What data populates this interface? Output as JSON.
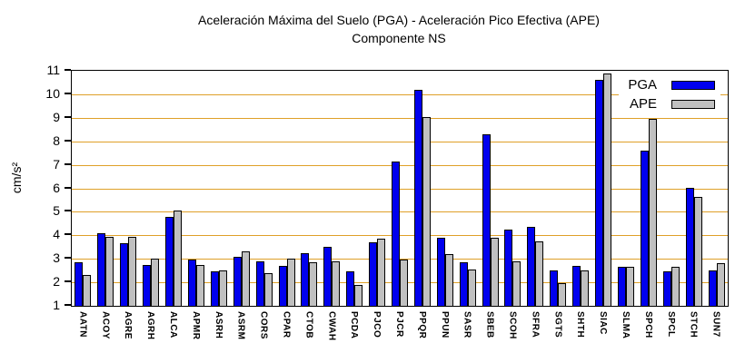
{
  "title": {
    "line1": "Aceleración Máxima del Suelo (PGA) -  Aceleración Pico Efectiva (APE)",
    "line2": "Componente NS"
  },
  "y_axis": {
    "label": "cm/s²",
    "tick_min": 1,
    "tick_max": 11,
    "tick_step": 1
  },
  "legend": {
    "pga_label": "PGA",
    "ape_label": "APE"
  },
  "colors": {
    "pga": "#0000EE",
    "ape": "#C0C0C0",
    "grid": "#DFA028",
    "axis": "#000000",
    "background": "#FFFFFF"
  },
  "chart_data": {
    "type": "bar",
    "title": "Aceleración Máxima del Suelo (PGA) -  Aceleración Pico Efectiva (APE)",
    "subtitle": "Componente NS",
    "xlabel": "",
    "ylabel": "cm/s²",
    "ylim": [
      1,
      11
    ],
    "yticks": [
      1,
      2,
      3,
      4,
      5,
      6,
      7,
      8,
      9,
      10,
      11
    ],
    "grid": "horizontal",
    "grid_color": "#DFA028",
    "legend_position": "top-right",
    "categories": [
      "AATN",
      "ACOY",
      "AGRE",
      "AGRH",
      "ALCA",
      "APMR",
      "ASRH",
      "ASRM",
      "CORS",
      "CPAR",
      "CTOB",
      "CWAH",
      "PCDA",
      "PJCO",
      "PJCR",
      "PPQR",
      "PPUN",
      "SASR",
      "SBEB",
      "SCOH",
      "SFRA",
      "SGTS",
      "SHTH",
      "SIAC",
      "SLMA",
      "SPCH",
      "SPCL",
      "STCH",
      "SUN7"
    ],
    "series": [
      {
        "name": "PGA",
        "color": "#0000EE",
        "values": [
          2.85,
          4.1,
          3.65,
          2.75,
          4.8,
          2.95,
          2.45,
          3.1,
          2.9,
          2.7,
          3.25,
          3.5,
          2.45,
          3.7,
          7.15,
          10.2,
          3.9,
          2.85,
          8.3,
          4.25,
          4.35,
          2.5,
          2.7,
          10.6,
          2.65,
          7.6,
          2.45,
          6.0,
          2.5
        ]
      },
      {
        "name": "APE",
        "color": "#C0C0C0",
        "values": [
          2.3,
          3.95,
          3.95,
          3.0,
          5.05,
          2.75,
          2.5,
          3.3,
          2.4,
          3.0,
          2.85,
          2.9,
          1.9,
          3.85,
          2.95,
          9.05,
          3.2,
          2.55,
          3.9,
          2.9,
          3.75,
          1.95,
          2.5,
          10.9,
          2.65,
          8.95,
          2.65,
          5.65,
          2.8
        ]
      }
    ]
  }
}
